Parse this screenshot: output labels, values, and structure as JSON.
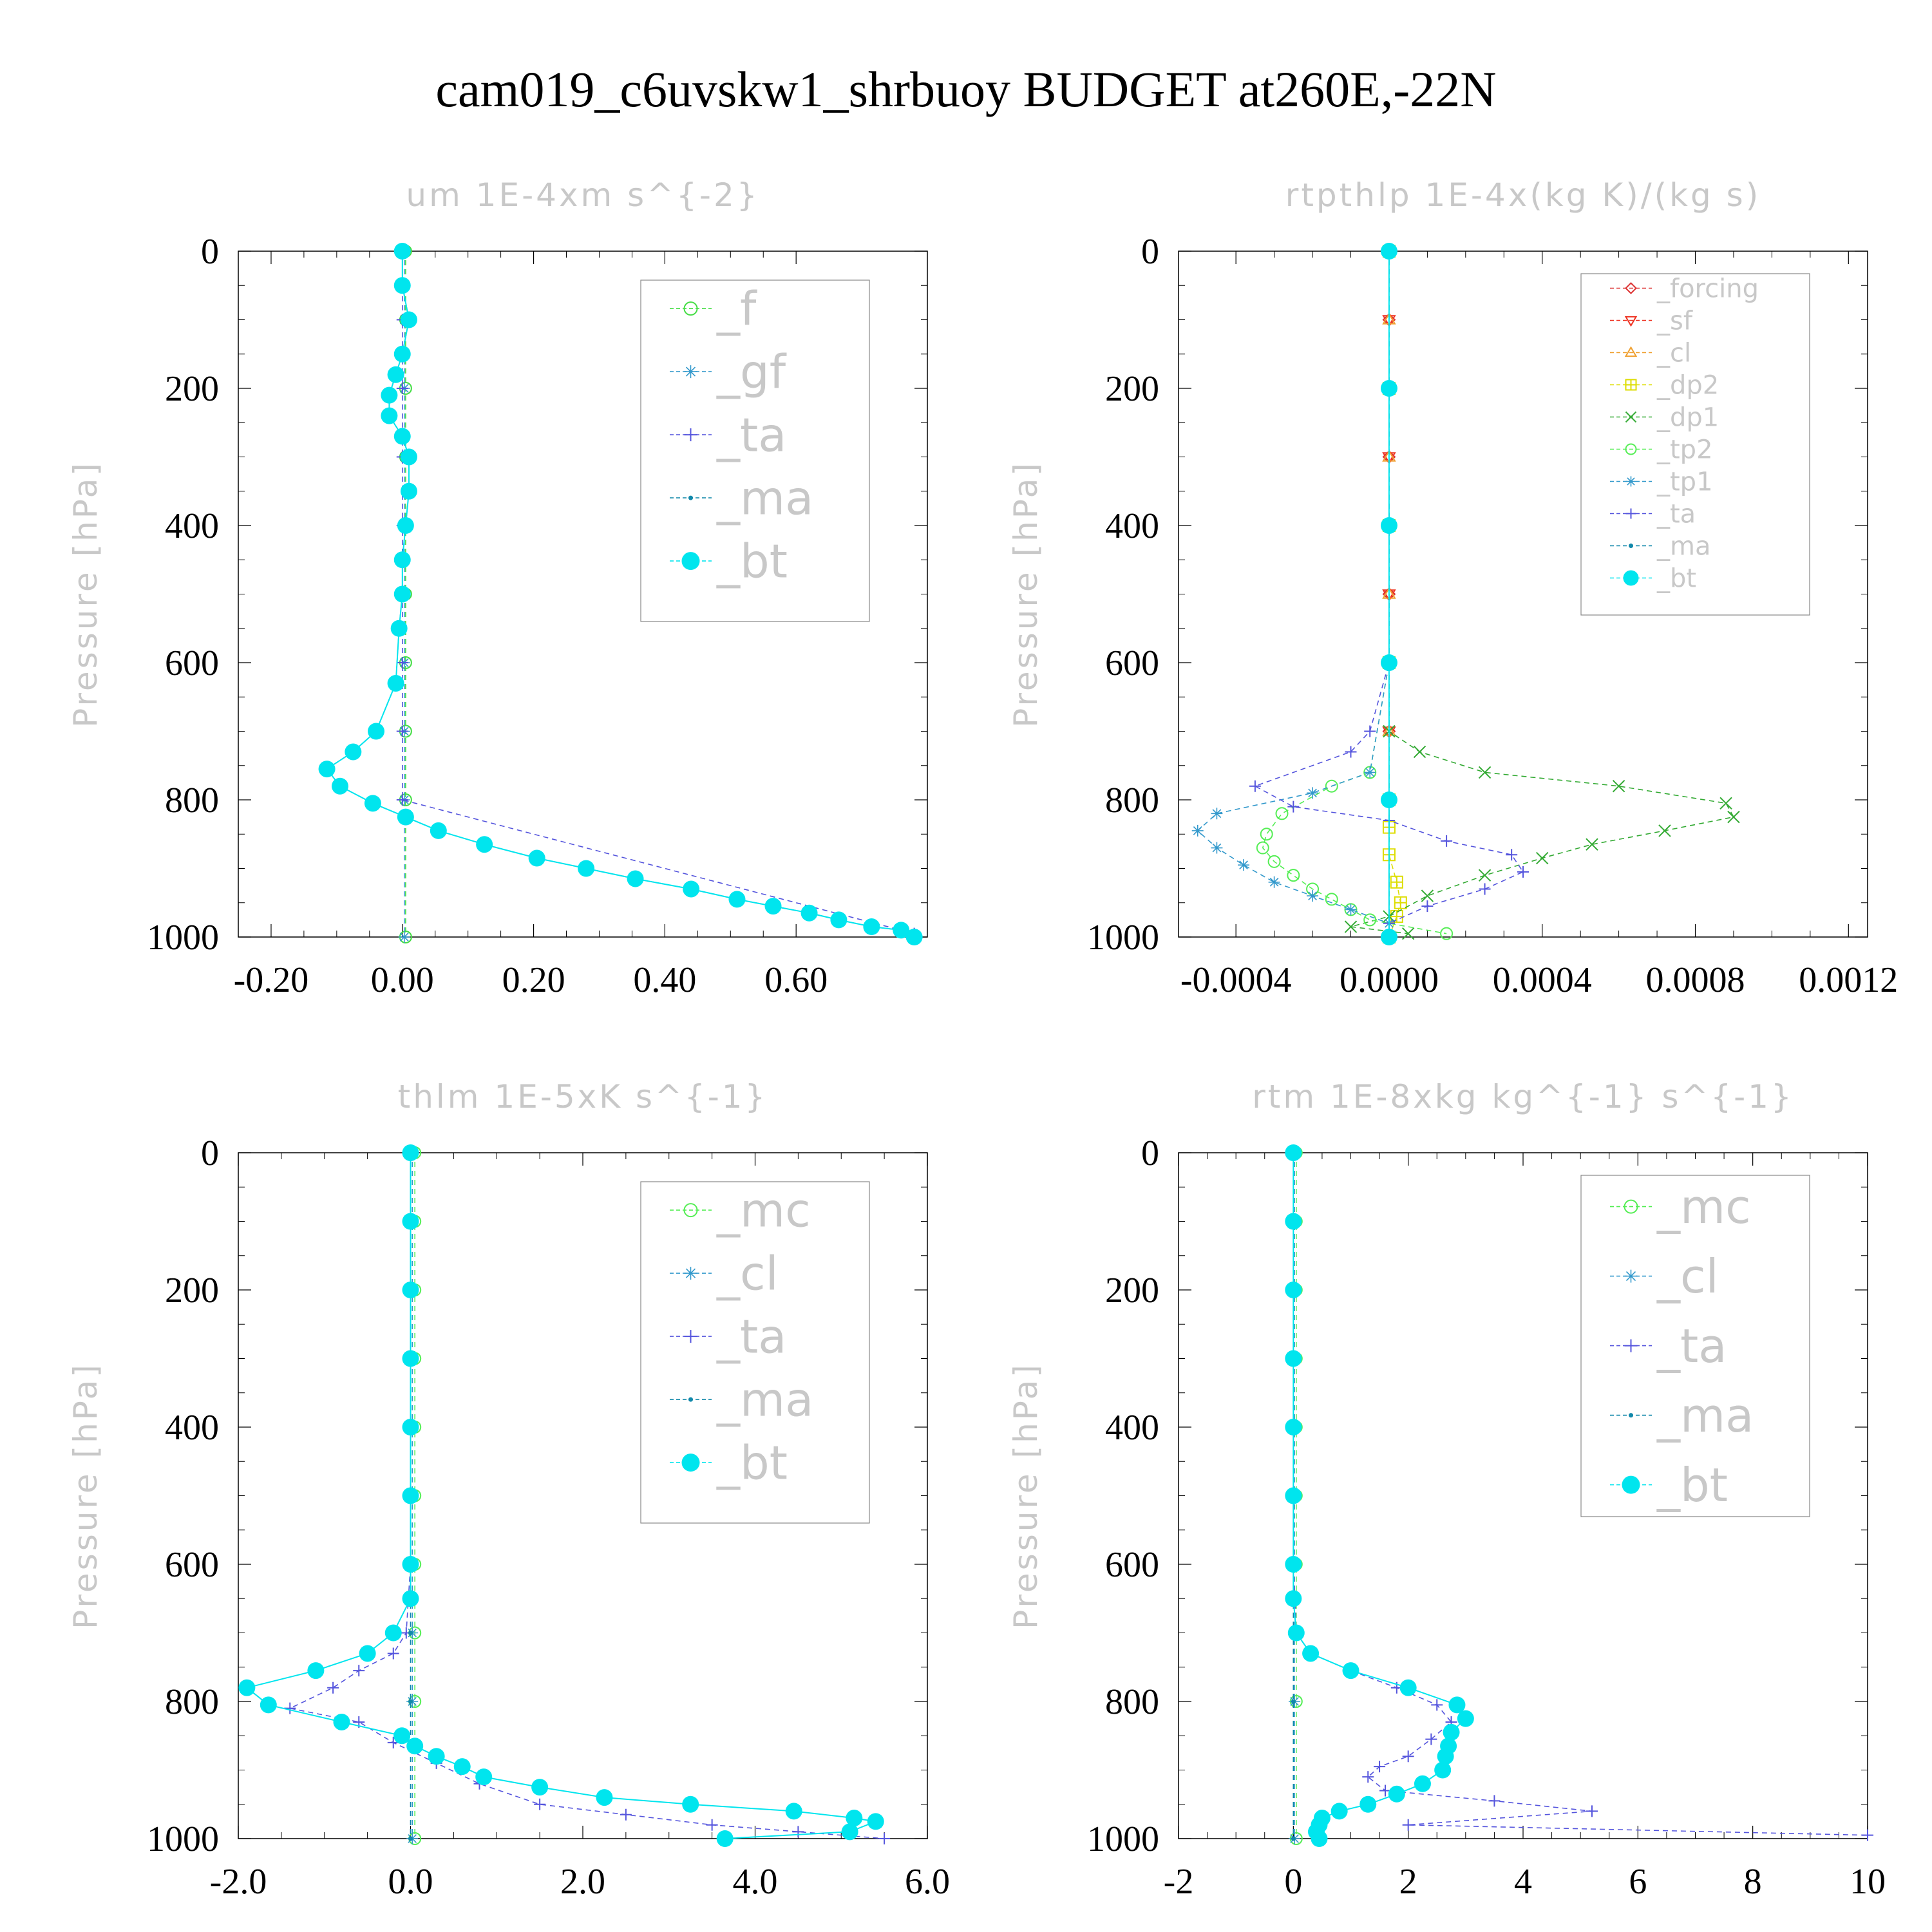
{
  "title": "cam019_c6uvskw1_shrbuoy  BUDGET at260E,-22N",
  "chart_data": [
    {
      "type": "line",
      "title": "um  1E-4xm s^{-2}",
      "ylabel": "Pressure [hPa]",
      "xlabel": "",
      "xlim": [
        -0.25,
        0.8
      ],
      "ylim": [
        1000,
        0
      ],
      "xticks": [
        "-0.20",
        "0.00",
        "0.20",
        "0.40",
        "0.60"
      ],
      "xtick_values": [
        -0.2,
        0.0,
        0.2,
        0.4,
        0.6
      ],
      "yticks": [
        "0",
        "200",
        "400",
        "600",
        "800",
        "1000"
      ],
      "legend_position": "top-right",
      "series": [
        {
          "name": "_f",
          "color": "#44dd44",
          "marker": "circle-open",
          "x": [
            0.005,
            0.005,
            0.005,
            0.005,
            0.005,
            0.005,
            0.005,
            0.005,
            0.005,
            0.005
          ],
          "y": [
            0,
            100,
            200,
            300,
            400,
            500,
            600,
            700,
            800,
            1000
          ]
        },
        {
          "name": "_gf",
          "color": "#3399cc",
          "marker": "star",
          "x": [
            0.003,
            0.003,
            0.003,
            0.003,
            0.003,
            0.003,
            0.003,
            0.003,
            0.003,
            0.003
          ],
          "y": [
            0,
            100,
            200,
            300,
            400,
            500,
            600,
            700,
            800,
            1000
          ]
        },
        {
          "name": "_ta",
          "color": "#5555dd",
          "marker": "plus",
          "x": [
            0.0,
            0.0,
            0.0,
            0.0,
            0.0,
            0.0,
            0.0,
            0.0,
            0.0,
            0.78
          ],
          "y": [
            0,
            100,
            200,
            300,
            400,
            500,
            600,
            700,
            800,
            995
          ]
        },
        {
          "name": "_ma",
          "color": "#1188aa",
          "marker": "dot",
          "x": [
            0.0,
            0.0,
            0.01,
            0.0,
            -0.01,
            -0.02,
            -0.02,
            0.0,
            0.01,
            0.01,
            0.005,
            0.0,
            0.0,
            -0.005,
            -0.01,
            -0.04,
            -0.075,
            -0.115,
            -0.095,
            -0.045,
            0.005,
            0.055,
            0.125,
            0.205,
            0.28,
            0.355,
            0.44,
            0.51,
            0.565,
            0.62,
            0.665,
            0.715,
            0.76,
            0.78
          ],
          "y": [
            0,
            50,
            100,
            150,
            180,
            210,
            240,
            270,
            300,
            350,
            400,
            450,
            500,
            550,
            630,
            700,
            730,
            755,
            780,
            805,
            825,
            845,
            865,
            885,
            900,
            915,
            930,
            945,
            955,
            965,
            975,
            985,
            990,
            1000
          ]
        },
        {
          "name": "_bt",
          "color": "#00e5ee",
          "marker": "dot-filled",
          "x": [
            0.0,
            0.0,
            0.01,
            0.0,
            -0.01,
            -0.02,
            -0.02,
            0.0,
            0.01,
            0.01,
            0.005,
            0.0,
            0.0,
            -0.005,
            -0.01,
            -0.04,
            -0.075,
            -0.115,
            -0.095,
            -0.045,
            0.005,
            0.055,
            0.125,
            0.205,
            0.28,
            0.355,
            0.44,
            0.51,
            0.565,
            0.62,
            0.665,
            0.715,
            0.76,
            0.78
          ],
          "y": [
            0,
            50,
            100,
            150,
            180,
            210,
            240,
            270,
            300,
            350,
            400,
            450,
            500,
            550,
            630,
            700,
            730,
            755,
            780,
            805,
            825,
            845,
            865,
            885,
            900,
            915,
            930,
            945,
            955,
            965,
            975,
            985,
            990,
            1000
          ]
        }
      ]
    },
    {
      "type": "line",
      "title": "rtpthlp  1E-4x(kg K)/(kg s)",
      "ylabel": "Pressure [hPa]",
      "xlabel": "",
      "xlim": [
        -0.00055,
        0.00125
      ],
      "ylim": [
        1000,
        0
      ],
      "xticks": [
        "-0.0004",
        "0.0000",
        "0.0004",
        "0.0008",
        "0.0012"
      ],
      "xtick_values": [
        -0.0004,
        0.0,
        0.0004,
        0.0008,
        0.0012
      ],
      "yticks": [
        "0",
        "200",
        "400",
        "600",
        "800",
        "1000"
      ],
      "legend_position": "top-right",
      "series": [
        {
          "name": "_forcing",
          "color": "#dd3333",
          "marker": "diamond-open",
          "x": [
            0,
            0,
            0,
            0,
            0,
            0,
            0,
            0,
            0,
            0
          ],
          "y": [
            0,
            100,
            200,
            300,
            400,
            500,
            600,
            700,
            800,
            1000
          ]
        },
        {
          "name": "_sf",
          "color": "#ee3322",
          "marker": "triangle-down",
          "x": [
            0,
            0,
            0,
            0,
            0,
            0,
            0,
            0,
            0,
            0
          ],
          "y": [
            0,
            100,
            200,
            300,
            400,
            500,
            600,
            700,
            800,
            1000
          ]
        },
        {
          "name": "_cl",
          "color": "#f0a030",
          "marker": "triangle-up",
          "x": [
            0,
            0,
            0,
            0,
            0,
            0,
            0,
            0,
            0,
            0
          ],
          "y": [
            0,
            100,
            200,
            300,
            400,
            500,
            600,
            700,
            800,
            1000
          ]
        },
        {
          "name": "_dp2",
          "color": "#dddd00",
          "marker": "square-plus",
          "x": [
            0,
            0,
            0,
            0,
            0,
            0,
            0,
            2e-05,
            3e-05,
            2e-05,
            0
          ],
          "y": [
            0,
            200,
            400,
            600,
            800,
            840,
            880,
            920,
            950,
            970,
            1000
          ]
        },
        {
          "name": "_dp1",
          "color": "#33aa33",
          "marker": "x",
          "x": [
            0,
            0,
            0,
            0,
            0.0,
            8e-05,
            0.00025,
            0.0006,
            0.00088,
            0.0009,
            0.00072,
            0.00053,
            0.0004,
            0.00025,
            0.0001,
            0.0,
            -0.0001,
            5e-05
          ],
          "y": [
            0,
            200,
            400,
            600,
            700,
            730,
            760,
            780,
            805,
            825,
            845,
            865,
            885,
            910,
            940,
            970,
            985,
            995
          ]
        },
        {
          "name": "_tp2",
          "color": "#55ee55",
          "marker": "circle-open",
          "x": [
            0,
            0,
            0,
            0,
            -5e-05,
            -0.00015,
            -0.00028,
            -0.00032,
            -0.00033,
            -0.0003,
            -0.00025,
            -0.0002,
            -0.00015,
            -0.0001,
            -5e-05,
            0.00015
          ],
          "y": [
            0,
            200,
            400,
            600,
            760,
            780,
            820,
            850,
            870,
            890,
            910,
            930,
            945,
            960,
            975,
            995
          ]
        },
        {
          "name": "_tp1",
          "color": "#3399cc",
          "marker": "star",
          "x": [
            0,
            0,
            0,
            0,
            -5e-05,
            -0.0002,
            -0.00045,
            -0.0005,
            -0.00045,
            -0.00038,
            -0.0003,
            -0.0002,
            -0.0001,
            0.0,
            0.0
          ],
          "y": [
            0,
            200,
            400,
            600,
            760,
            790,
            820,
            845,
            870,
            895,
            920,
            940,
            960,
            980,
            1000
          ]
        },
        {
          "name": "_ta",
          "color": "#5555dd",
          "marker": "plus",
          "x": [
            0,
            0,
            0,
            0,
            -5e-05,
            -0.0001,
            -0.00035,
            -0.00025,
            0.0,
            0.00015,
            0.00032,
            0.00035,
            0.00025,
            0.0001,
            0.0,
            0.0
          ],
          "y": [
            0,
            200,
            400,
            600,
            700,
            730,
            780,
            810,
            830,
            860,
            880,
            905,
            930,
            955,
            980,
            1000
          ]
        },
        {
          "name": "_ma",
          "color": "#1188aa",
          "marker": "dot",
          "x": [
            0,
            0,
            0,
            0,
            0,
            0
          ],
          "y": [
            0,
            200,
            400,
            600,
            800,
            1000
          ]
        },
        {
          "name": "_bt",
          "color": "#00e5ee",
          "marker": "dot-filled",
          "x": [
            0,
            0,
            0,
            0,
            0,
            0
          ],
          "y": [
            0,
            200,
            400,
            600,
            800,
            1000
          ]
        }
      ]
    },
    {
      "type": "line",
      "title": "thlm  1E-5xK s^{-1}",
      "ylabel": "Pressure [hPa]",
      "xlabel": "",
      "xlim": [
        -2.0,
        6.0
      ],
      "ylim": [
        1000,
        0
      ],
      "xticks": [
        "-2.0",
        "0.0",
        "2.0",
        "4.0",
        "6.0"
      ],
      "xtick_values": [
        -2.0,
        0.0,
        2.0,
        4.0,
        6.0
      ],
      "yticks": [
        "0",
        "200",
        "400",
        "600",
        "800",
        "1000"
      ],
      "legend_position": "top-right",
      "series": [
        {
          "name": "_mc",
          "color": "#55ee55",
          "marker": "circle-open",
          "x": [
            0.05,
            0.05,
            0.05,
            0.05,
            0.05,
            0.05,
            0.05,
            0.05,
            0.05,
            0.05
          ],
          "y": [
            0,
            100,
            200,
            300,
            400,
            500,
            600,
            700,
            800,
            1000
          ]
        },
        {
          "name": "_cl",
          "color": "#3399cc",
          "marker": "star",
          "x": [
            0.02,
            0.02,
            0.02,
            0.02,
            0.02,
            0.02,
            0.02,
            0.02,
            0.02,
            0.02
          ],
          "y": [
            0,
            100,
            200,
            300,
            400,
            500,
            600,
            700,
            800,
            1000
          ]
        },
        {
          "name": "_ta",
          "color": "#5555dd",
          "marker": "plus",
          "x": [
            0,
            0,
            0,
            0,
            0,
            0,
            0,
            -0.05,
            -0.2,
            -0.6,
            -0.9,
            -1.4,
            -0.6,
            -0.2,
            0.3,
            0.8,
            1.5,
            2.5,
            3.5,
            4.5,
            5.5
          ],
          "y": [
            0,
            100,
            200,
            300,
            400,
            500,
            600,
            700,
            730,
            755,
            780,
            810,
            830,
            860,
            890,
            920,
            950,
            965,
            980,
            990,
            1000
          ]
        },
        {
          "name": "_ma",
          "color": "#1188aa",
          "marker": "dot",
          "x": [
            0,
            0,
            0,
            0,
            0,
            0,
            0,
            0,
            0,
            0
          ],
          "y": [
            0,
            100,
            200,
            300,
            400,
            500,
            600,
            700,
            800,
            1000
          ]
        },
        {
          "name": "_bt",
          "color": "#00e5ee",
          "marker": "dot-filled",
          "x": [
            0,
            0,
            0,
            0,
            0,
            0,
            0,
            0,
            -0.2,
            -0.5,
            -1.1,
            -1.9,
            -1.65,
            -0.8,
            -0.1,
            0.05,
            0.3,
            0.6,
            0.85,
            1.5,
            2.25,
            3.25,
            4.45,
            5.15,
            5.4,
            5.1,
            3.65
          ],
          "y": [
            0,
            100,
            200,
            300,
            400,
            500,
            600,
            650,
            700,
            730,
            755,
            780,
            805,
            830,
            850,
            865,
            880,
            895,
            910,
            925,
            940,
            950,
            960,
            970,
            975,
            990,
            1000
          ]
        }
      ]
    },
    {
      "type": "line",
      "title": "rtm  1E-8xkg kg^{-1} s^{-1}",
      "ylabel": "Pressure [hPa]",
      "xlabel": "",
      "xlim": [
        -2,
        10
      ],
      "ylim": [
        1000,
        0
      ],
      "xticks": [
        "-2",
        "0",
        "2",
        "4",
        "6",
        "8",
        "10"
      ],
      "xtick_values": [
        -2,
        0,
        2,
        4,
        6,
        8,
        10
      ],
      "yticks": [
        "0",
        "200",
        "400",
        "600",
        "800",
        "1000"
      ],
      "legend_position": "top-right",
      "series": [
        {
          "name": "_mc",
          "color": "#55ee55",
          "marker": "circle-open",
          "x": [
            0.05,
            0.05,
            0.05,
            0.05,
            0.05,
            0.05,
            0.05,
            0.05,
            0.05,
            0.05
          ],
          "y": [
            0,
            100,
            200,
            300,
            400,
            500,
            600,
            700,
            800,
            1000
          ]
        },
        {
          "name": "_cl",
          "color": "#3399cc",
          "marker": "star",
          "x": [
            0.02,
            0.02,
            0.02,
            0.02,
            0.02,
            0.02,
            0.02,
            0.02,
            0.02,
            0.02
          ],
          "y": [
            0,
            100,
            200,
            300,
            400,
            500,
            600,
            700,
            800,
            1000
          ]
        },
        {
          "name": "_ta",
          "color": "#5555dd",
          "marker": "plus",
          "x": [
            0,
            0,
            0,
            0,
            0,
            0,
            0,
            0.05,
            0.3,
            1.0,
            1.8,
            2.5,
            2.75,
            2.4,
            2.0,
            1.5,
            1.3,
            1.6,
            3.5,
            5.2,
            2.0,
            10.0
          ],
          "y": [
            0,
            100,
            200,
            300,
            400,
            500,
            600,
            700,
            730,
            755,
            780,
            805,
            830,
            855,
            880,
            895,
            910,
            930,
            945,
            960,
            980,
            995
          ]
        },
        {
          "name": "_ma",
          "color": "#1188aa",
          "marker": "dot",
          "x": [
            0,
            0,
            0,
            0,
            0,
            0,
            0,
            0,
            0,
            0
          ],
          "y": [
            0,
            100,
            200,
            300,
            400,
            500,
            600,
            700,
            800,
            1000
          ]
        },
        {
          "name": "_bt",
          "color": "#00e5ee",
          "marker": "dot-filled",
          "x": [
            0,
            0,
            0,
            0,
            0,
            0,
            0,
            0,
            0.05,
            0.3,
            1.0,
            2.0,
            2.85,
            3.0,
            2.75,
            2.7,
            2.65,
            2.6,
            2.25,
            1.8,
            1.3,
            0.8,
            0.5,
            0.45,
            0.4,
            0.45
          ],
          "y": [
            0,
            100,
            200,
            300,
            400,
            500,
            600,
            650,
            700,
            730,
            755,
            780,
            805,
            825,
            845,
            865,
            880,
            900,
            920,
            935,
            950,
            960,
            970,
            980,
            990,
            1000
          ]
        }
      ]
    }
  ]
}
